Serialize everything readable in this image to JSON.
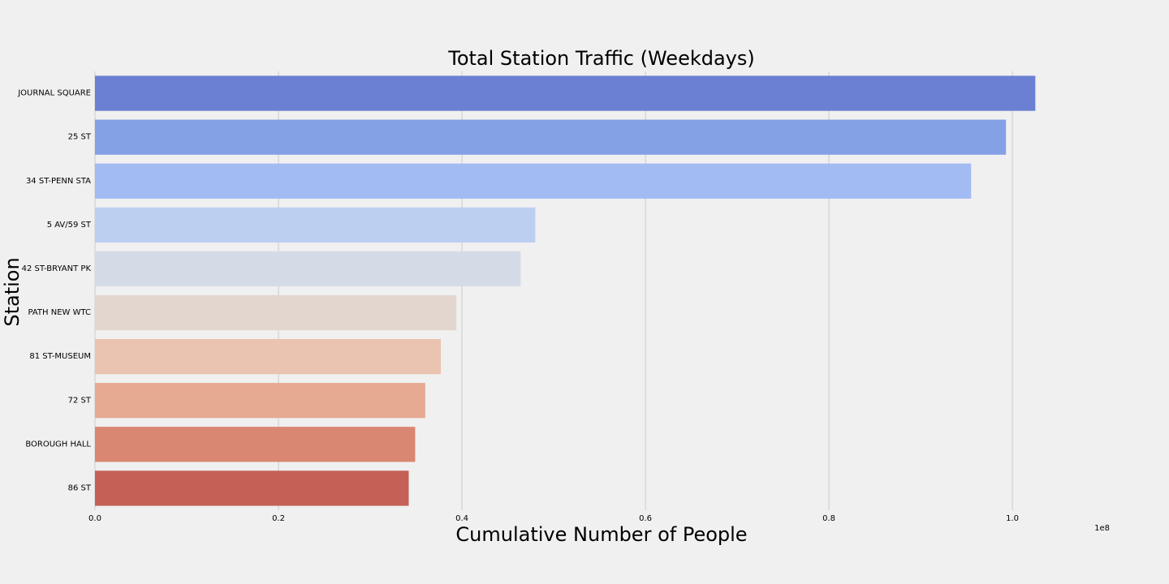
{
  "chart_data": {
    "type": "bar",
    "orientation": "horizontal",
    "title": "Total Station Traffic (Weekdays)",
    "xlabel": "Cumulative Number of People",
    "ylabel": "Station",
    "x_offset_label": "1e8",
    "xlim": [
      0,
      1.13
    ],
    "x_ticks": [
      "0.0",
      "0.2",
      "0.4",
      "0.6",
      "0.8",
      "1.0"
    ],
    "x_tick_values": [
      0.0,
      0.2,
      0.4,
      0.6,
      0.8,
      1.0
    ],
    "grid": true,
    "categories": [
      "JOURNAL SQUARE",
      "25 ST",
      "34 ST-PENN STA",
      "5 AV/59 ST",
      "42 ST-BRYANT PK",
      "PATH NEW WTC",
      "81 ST-MUSEUM",
      "72 ST",
      "BOROUGH HALL",
      "86 ST"
    ],
    "values": [
      1.025,
      0.993,
      0.955,
      0.48,
      0.464,
      0.394,
      0.377,
      0.36,
      0.349,
      0.342
    ],
    "colors": [
      "#6b80d2",
      "#85a1e6",
      "#a2bbf3",
      "#bdcff0",
      "#d5dbe6",
      "#e3d6cf",
      "#ebc3b1",
      "#e6a991",
      "#d98672",
      "#c46056"
    ]
  }
}
